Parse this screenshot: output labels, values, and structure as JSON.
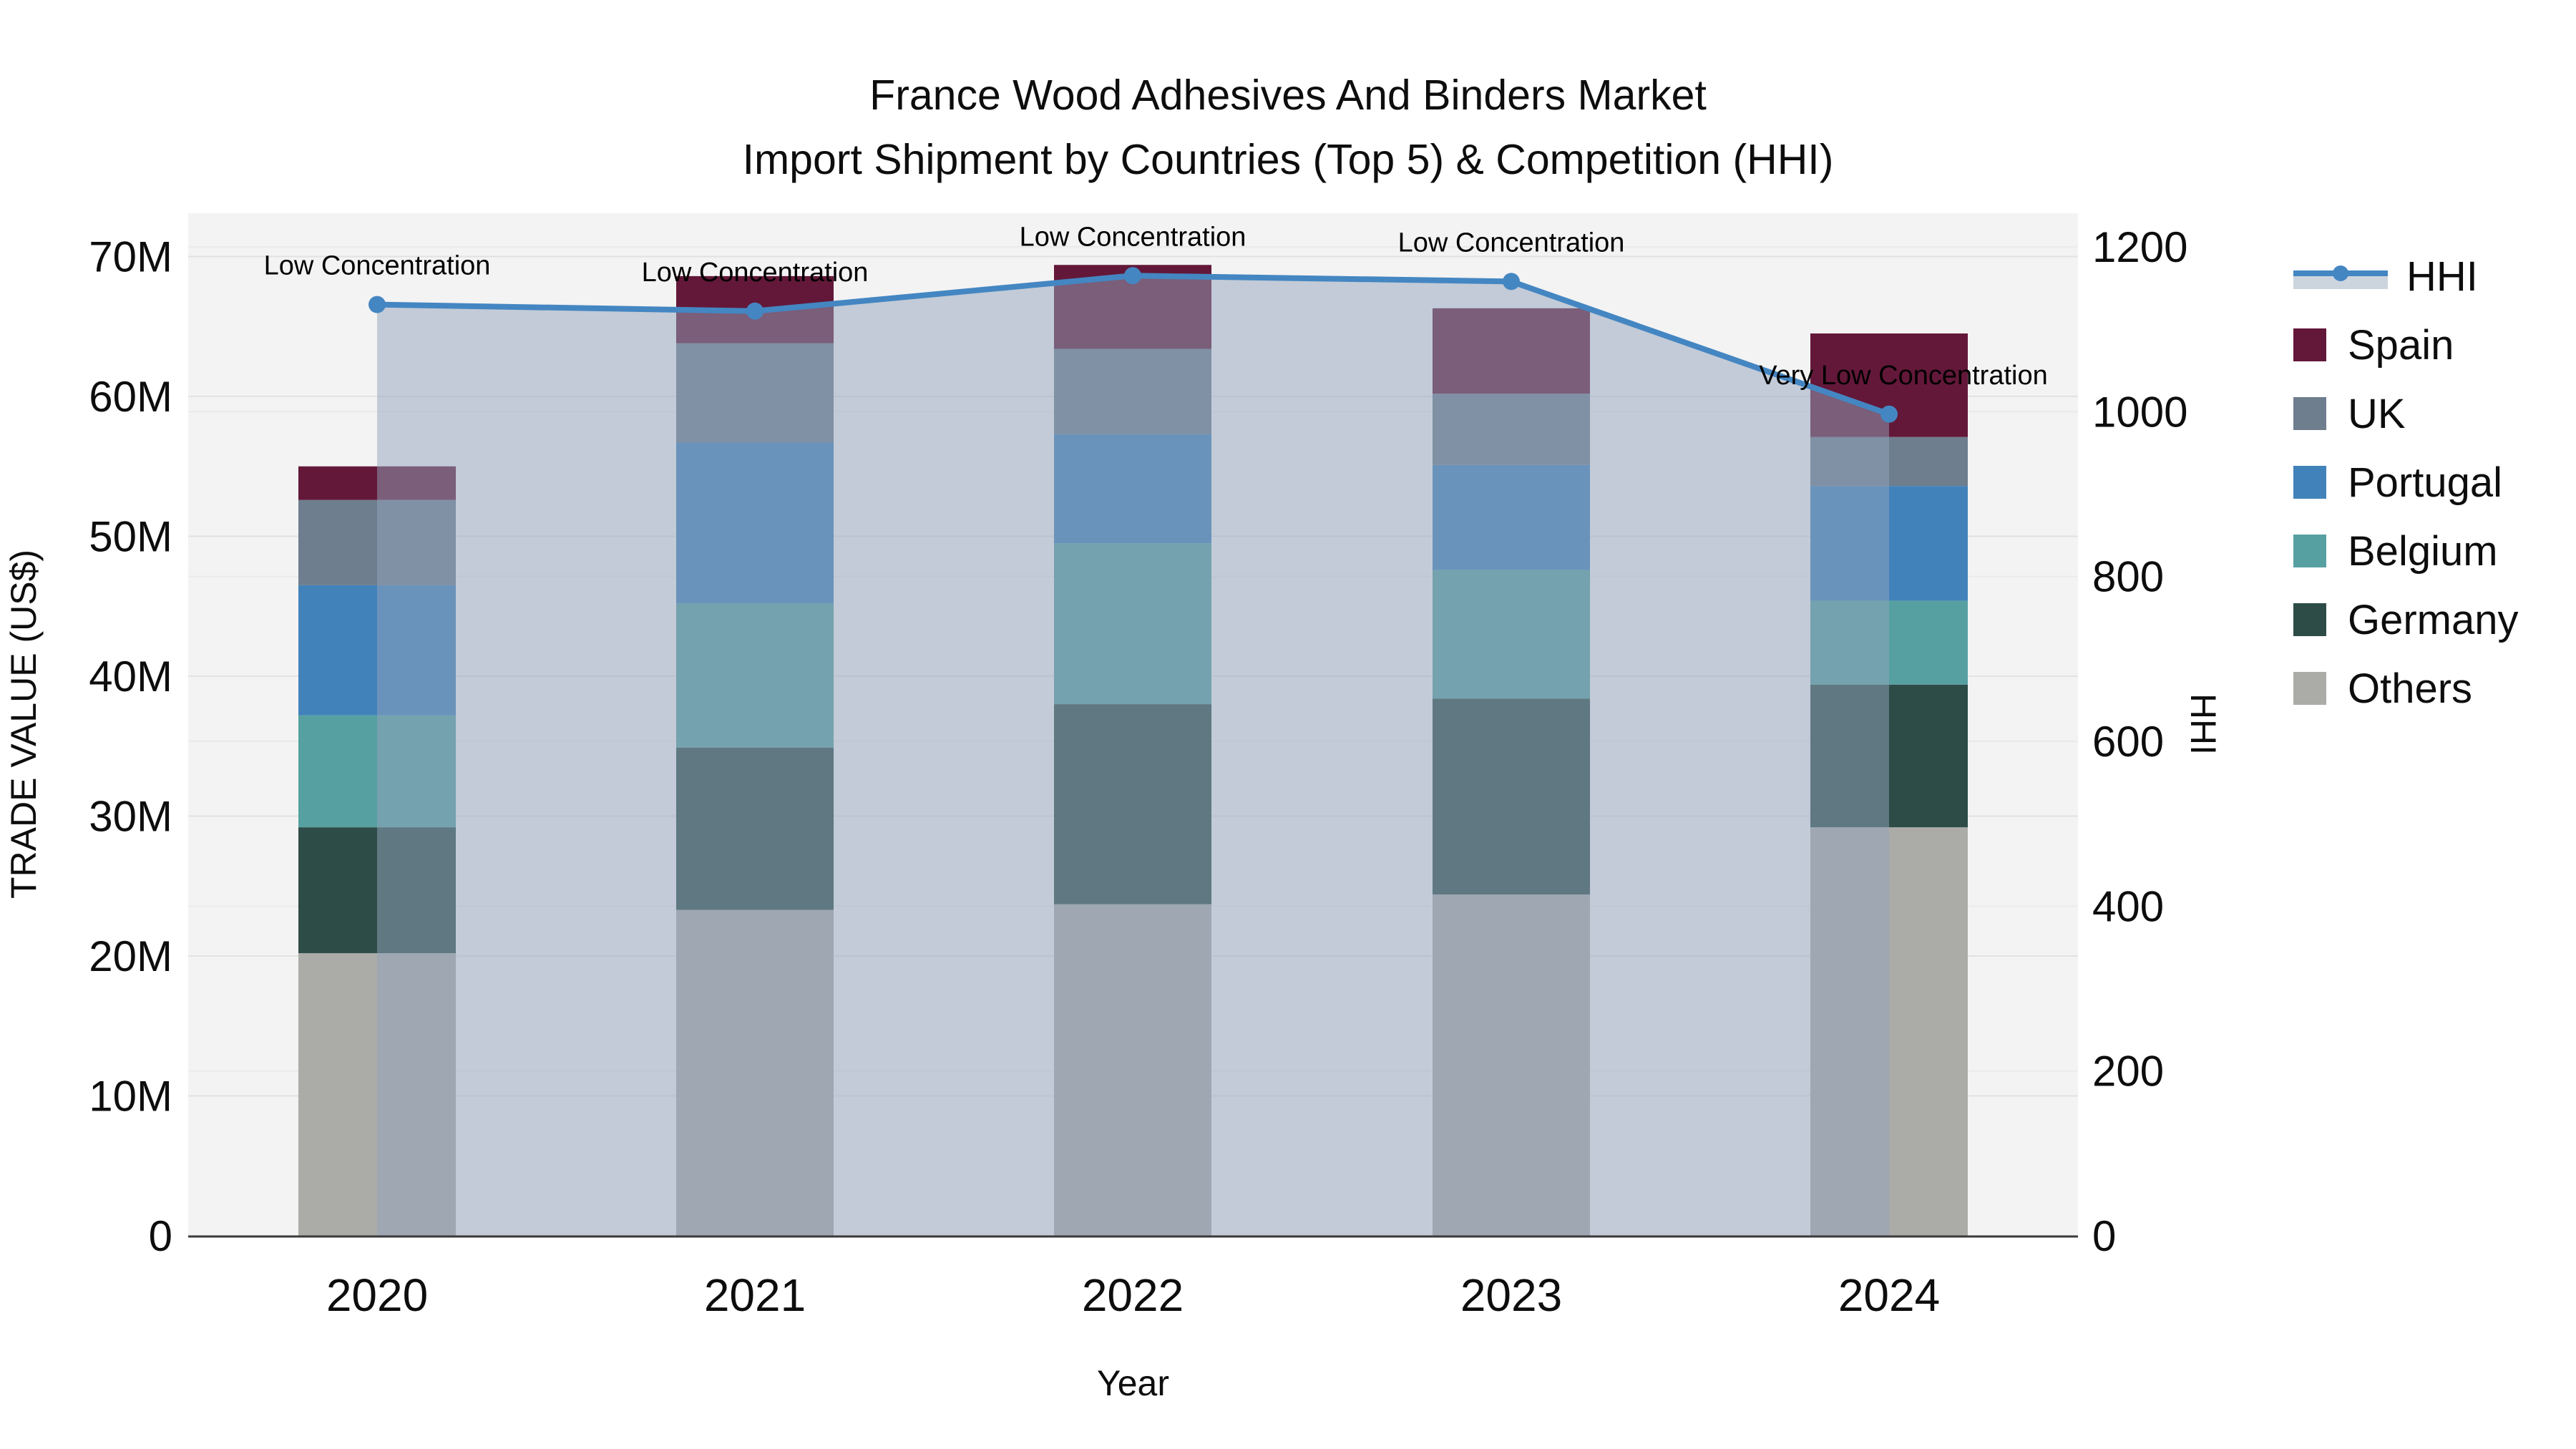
{
  "title": {
    "line1": "France Wood Adhesives And Binders Market",
    "line2": "Import Shipment by Countries (Top 5) & Competition (HHI)"
  },
  "axes": {
    "x_label": "Year",
    "y_left_label": "TRADE VALUE (US$)",
    "y_right_label": "HHI",
    "y_left_ticks": [
      "0",
      "10M",
      "20M",
      "30M",
      "40M",
      "50M",
      "60M",
      "70M"
    ],
    "y_left_tick_values": [
      0,
      10,
      20,
      30,
      40,
      50,
      60,
      70
    ],
    "y_right_ticks": [
      "0",
      "200",
      "400",
      "600",
      "800",
      "1000",
      "1200"
    ],
    "y_right_tick_values": [
      0,
      200,
      400,
      600,
      800,
      1000,
      1200
    ]
  },
  "legend": {
    "items": [
      {
        "label": "HHI",
        "type": "line"
      },
      {
        "label": "Spain",
        "type": "swatch",
        "color": "#631839"
      },
      {
        "label": "UK",
        "type": "swatch",
        "color": "#6e7e8e"
      },
      {
        "label": "Portugal",
        "type": "swatch",
        "color": "#4282ba"
      },
      {
        "label": "Belgium",
        "type": "swatch",
        "color": "#57a0a1"
      },
      {
        "label": "Germany",
        "type": "swatch",
        "color": "#2d4c48"
      },
      {
        "label": "Others",
        "type": "swatch",
        "color": "#ababa8"
      }
    ]
  },
  "colors": {
    "plot_background": "#f3f3f3",
    "grid_left": "#e2e2e2",
    "grid_right": "#eaeaea",
    "axis_line": "#3a3a3a",
    "hhi_line": "#4486c2",
    "hhi_area_fill": "rgba(145,163,188,0.5)",
    "annotation_text": "#000000"
  },
  "chart_data": {
    "type": "bar+line",
    "title": "France Wood Adhesives And Binders Market — Import Shipment by Countries (Top 5) & Competition (HHI)",
    "categories": [
      "2020",
      "2021",
      "2022",
      "2023",
      "2024"
    ],
    "unit": "M US$",
    "stack_order_bottom_to_top": [
      "Others",
      "Germany",
      "Belgium",
      "Portugal",
      "UK",
      "Spain"
    ],
    "series": [
      {
        "name": "Others",
        "color": "#ababa8",
        "values": [
          20.2,
          23.3,
          23.7,
          24.4,
          29.2
        ]
      },
      {
        "name": "Germany",
        "color": "#2d4c48",
        "values": [
          9.0,
          11.6,
          14.3,
          14.0,
          10.2
        ]
      },
      {
        "name": "Belgium",
        "color": "#57a0a1",
        "values": [
          8.0,
          10.3,
          11.5,
          9.2,
          6.0
        ]
      },
      {
        "name": "Portugal",
        "color": "#4282ba",
        "values": [
          9.3,
          11.5,
          7.8,
          7.5,
          8.2
        ]
      },
      {
        "name": "UK",
        "color": "#6e7e8e",
        "values": [
          6.1,
          7.1,
          6.1,
          5.1,
          3.5
        ]
      },
      {
        "name": "Spain",
        "color": "#631839",
        "values": [
          2.4,
          4.8,
          6.0,
          6.1,
          7.4
        ]
      }
    ],
    "bar_totals": [
      55.0,
      68.6,
      69.4,
      66.3,
      64.5
    ],
    "hhi": {
      "name": "HHI",
      "color": "#4486c2",
      "values": [
        1130,
        1122,
        1165,
        1158,
        997
      ]
    },
    "annotations": [
      {
        "x": "2020",
        "text": "Low Concentration"
      },
      {
        "x": "2021",
        "text": "Low Concentration"
      },
      {
        "x": "2022",
        "text": "Low Concentration"
      },
      {
        "x": "2023",
        "text": "Low Concentration"
      },
      {
        "x": "2024",
        "text": "Very Low Concentration"
      }
    ],
    "xlabel": "Year",
    "ylabel_left": "TRADE VALUE (US$)",
    "ylabel_right": "HHI",
    "ylim_left": [
      0,
      73
    ],
    "ylim_right": [
      0,
      1240
    ],
    "grid": true,
    "legend_position": "right"
  }
}
